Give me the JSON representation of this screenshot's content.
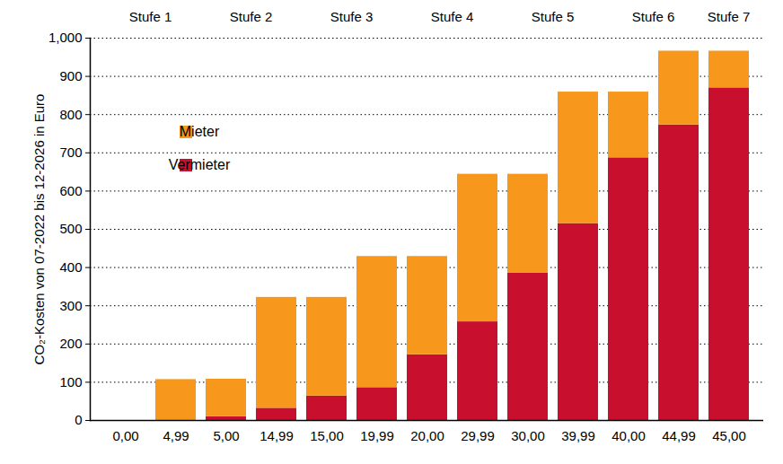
{
  "chart_data": {
    "type": "bar",
    "stacked": true,
    "grid": true,
    "legend": "top-left",
    "y_label": "CO₂-Kosten von 07-2022 bis 12-2026 in Euro",
    "categories": [
      "0,00",
      "4,99",
      "5,00",
      "14,99",
      "15,00",
      "19,99",
      "20,00",
      "29,99",
      "30,00",
      "39,99",
      "40,00",
      "44,99",
      "45,00"
    ],
    "series": [
      {
        "name": "Vermieter",
        "color": "#c8102e",
        "values": [
          0,
          0,
          10,
          32,
          64,
          86,
          172,
          258,
          386,
          515,
          687,
          773,
          870
        ]
      },
      {
        "name": "Mieter",
        "color": "#f7981d",
        "values": [
          0,
          107,
          98,
          290,
          258,
          343,
          257,
          386,
          258,
          344,
          172,
          193,
          96
        ]
      }
    ],
    "ylim": [
      0,
      1000
    ],
    "yticks": [
      0,
      100,
      200,
      300,
      400,
      500,
      600,
      700,
      800,
      900,
      1000
    ],
    "annotations": [
      {
        "text": "Stufe 1",
        "categories": [
          "0,00",
          "4,99"
        ]
      },
      {
        "text": "Stufe 2",
        "categories": [
          "5,00",
          "14,99"
        ]
      },
      {
        "text": "Stufe 3",
        "categories": [
          "15,00",
          "19,99"
        ]
      },
      {
        "text": "Stufe 4",
        "categories": [
          "20,00",
          "29,99"
        ]
      },
      {
        "text": "Stufe 5",
        "categories": [
          "30,00",
          "39,99"
        ]
      },
      {
        "text": "Stufe 6",
        "categories": [
          "40,00",
          "44,99"
        ]
      },
      {
        "text": "Stufe 7",
        "categories": [
          "45,00"
        ]
      }
    ]
  }
}
